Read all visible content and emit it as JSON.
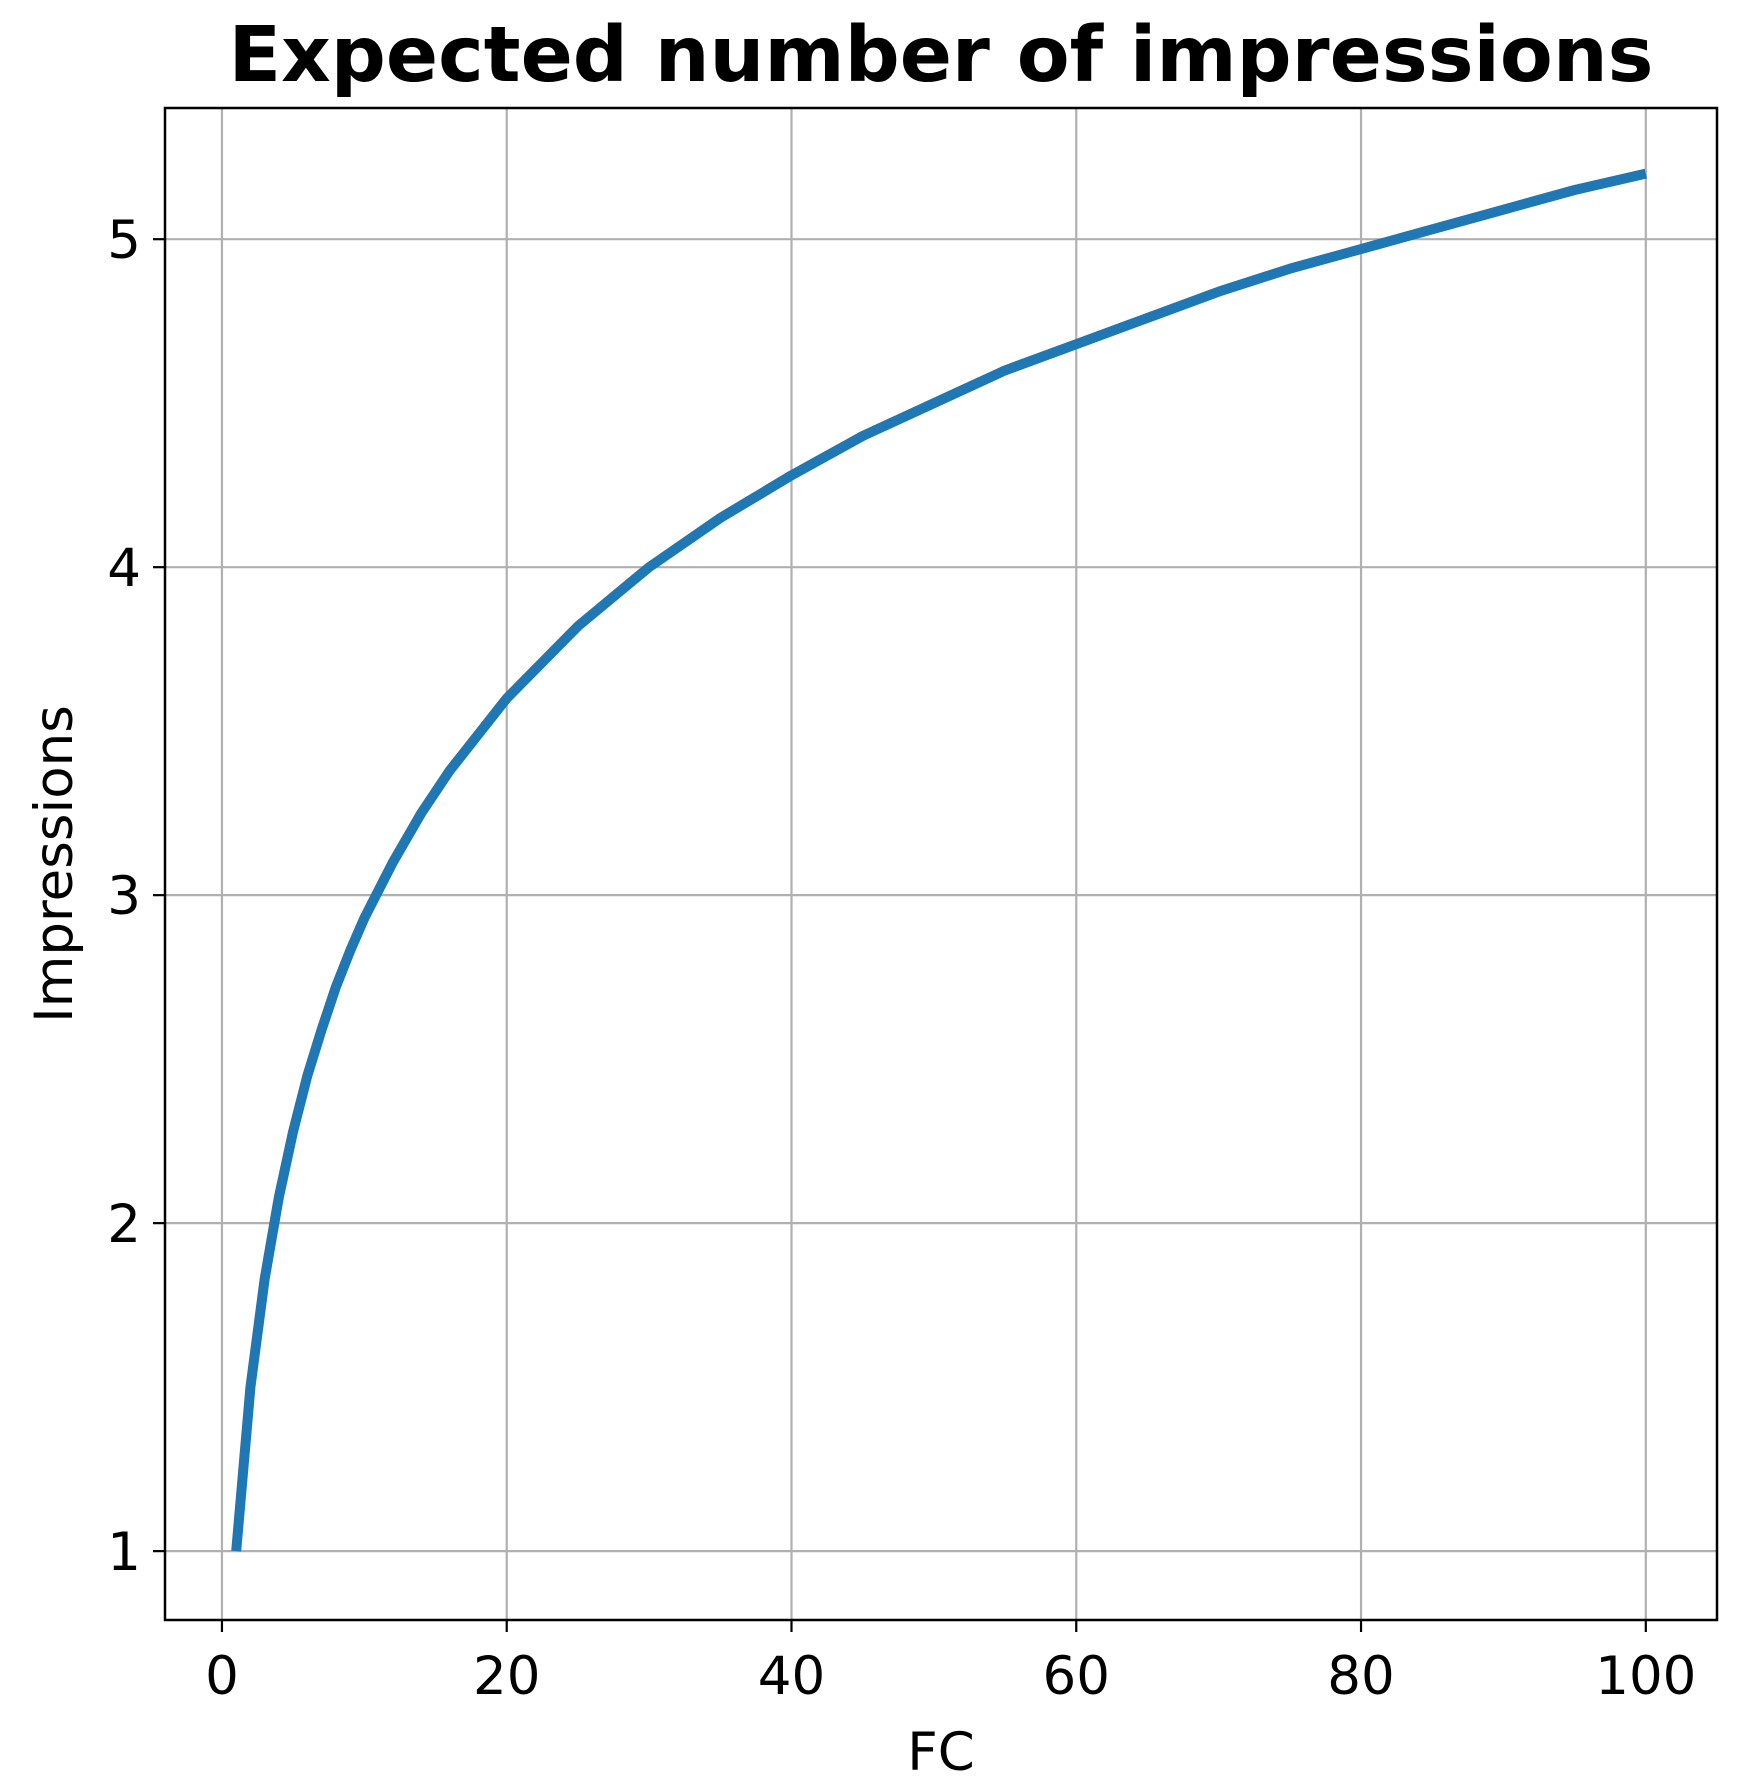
{
  "chart_data": {
    "type": "line",
    "title": "Expected number of impressions",
    "xlabel": "FC",
    "ylabel": "Impressions",
    "xlim": [
      -4.0,
      105.0
    ],
    "ylim": [
      0.79,
      5.4
    ],
    "xticks": [
      0,
      20,
      40,
      60,
      80,
      100
    ],
    "xtick_labels": [
      "0",
      "20",
      "40",
      "60",
      "80",
      "100"
    ],
    "yticks": [
      1,
      2,
      3,
      4,
      5
    ],
    "ytick_labels": [
      "1",
      "2",
      "3",
      "4",
      "5"
    ],
    "grid": true,
    "series": [
      {
        "color": "#1f77b4",
        "x": [
          1,
          2,
          3,
          4,
          5,
          6,
          7,
          8,
          9,
          10,
          12,
          14,
          16,
          18,
          20,
          25,
          30,
          35,
          40,
          45,
          50,
          55,
          60,
          65,
          70,
          75,
          80,
          85,
          90,
          95,
          100
        ],
        "y": [
          1.0,
          1.5,
          1.83,
          2.08,
          2.28,
          2.45,
          2.59,
          2.72,
          2.83,
          2.93,
          3.1,
          3.25,
          3.38,
          3.49,
          3.6,
          3.82,
          4.0,
          4.15,
          4.28,
          4.4,
          4.5,
          4.6,
          4.68,
          4.76,
          4.84,
          4.91,
          4.97,
          5.03,
          5.09,
          5.15,
          5.2
        ]
      }
    ]
  }
}
